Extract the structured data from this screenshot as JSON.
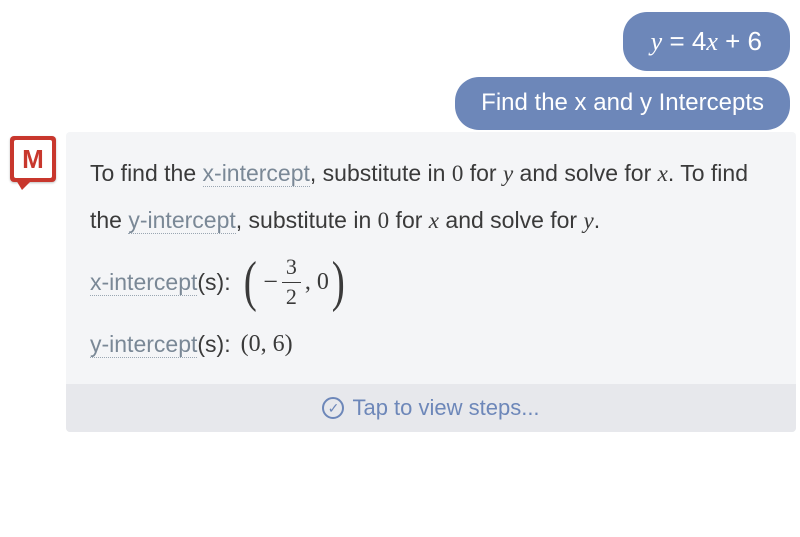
{
  "colors": {
    "bubble_bg": "#6d87b9",
    "bubble_text": "#ffffff",
    "card_bg": "#f4f5f7",
    "tap_bg": "#e7e8ec",
    "link_term": "#7a8896",
    "logo_bg": "#c8372d",
    "body_text": "#3a3a3a"
  },
  "user": {
    "equation_display": "y = 4x + 6",
    "equation": {
      "lhs": "y",
      "coef": "4",
      "var": "x",
      "const": "6"
    },
    "query": "Find the x and y Intercepts"
  },
  "assistant": {
    "logo_letter": "M",
    "explain": {
      "pre1": "To find the ",
      "linkA": "x-intercept",
      "mid1a": ", substitute in ",
      "zero": "0",
      "mid1b": " for ",
      "var_y": "y",
      "mid1c": " and solve for ",
      "var_x": "x",
      "mid2a": ". To find the ",
      "linkB": "y-intercept",
      "mid2b": ", substitute in ",
      "mid2c": " for ",
      "mid2d": " and solve for ",
      "period": "."
    },
    "results": {
      "x": {
        "link": "x-intercept",
        "suffix": "(s): ",
        "point": {
          "neg": "−",
          "num": "3",
          "den": "2",
          "y": "0"
        }
      },
      "y": {
        "link": "y-intercept",
        "suffix": "(s): ",
        "point_text": "(0, 6)"
      }
    },
    "tap_label": "Tap to view steps..."
  }
}
